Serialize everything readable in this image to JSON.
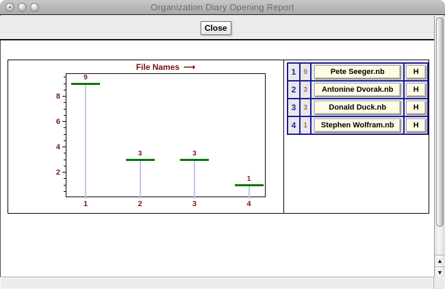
{
  "window": {
    "title": "Organization Diary Opening Report"
  },
  "toolbar": {
    "close_label": "Close"
  },
  "chart_data": {
    "type": "bar",
    "title_text": "File Names",
    "title_arrow": "⟶",
    "categories": [
      "1",
      "2",
      "3",
      "4"
    ],
    "values": [
      9,
      3,
      3,
      1
    ],
    "value_labels": [
      "9",
      "3",
      "3",
      "1"
    ],
    "ylim": [
      0,
      9.8
    ],
    "ytick_labels": [
      "2",
      "4",
      "6",
      "8"
    ],
    "ytick_values": [
      2,
      4,
      6,
      8
    ],
    "minor_tick_step": 0.5,
    "grid": false,
    "legend": false,
    "bar_color": "#007700",
    "stem_color": "#c3c7ea",
    "label_color": "#7a1515"
  },
  "file_table": {
    "rows": [
      {
        "index": "1",
        "count": "9",
        "file": "Pete Seeger.nb",
        "h_label": "H"
      },
      {
        "index": "2",
        "count": "3",
        "file": "Antonine Dvorak.nb",
        "h_label": "H"
      },
      {
        "index": "3",
        "count": "3",
        "file": "Donald Duck.nb",
        "h_label": "H"
      },
      {
        "index": "4",
        "count": "1",
        "file": "Stephen Wolfram.nb",
        "h_label": "H"
      }
    ]
  },
  "scrollbar": {
    "up_arrow": "▲",
    "down_arrow": "▼"
  }
}
